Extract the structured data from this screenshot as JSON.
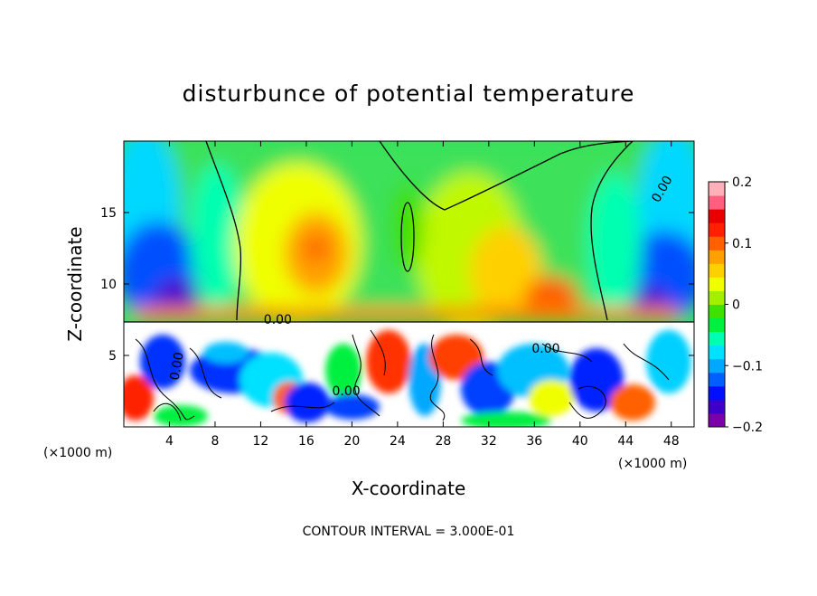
{
  "chart_data": {
    "type": "heatmap",
    "title": "disturbunce of potential temperature",
    "xlabel": "X-coordinate",
    "ylabel": "Z-coordinate",
    "x_unit_left": "(×1000 m)",
    "x_unit_right": "(×1000 m)",
    "xlim": [
      0,
      50
    ],
    "ylim": [
      0,
      20
    ],
    "x_ticks": [
      4,
      8,
      12,
      16,
      20,
      24,
      28,
      32,
      36,
      40,
      44,
      48
    ],
    "x_tick_labels": [
      "4",
      "8",
      "12",
      "16",
      "20",
      "24",
      "28",
      "32",
      "36",
      "40",
      "44",
      "48"
    ],
    "y_ticks": [
      5,
      10,
      15
    ],
    "y_tick_labels": [
      "5",
      "10",
      "15"
    ],
    "contour_labels": [
      {
        "text": "0.00",
        "x": 47.5,
        "y": 16.5,
        "rotate": -60
      },
      {
        "text": "0.00",
        "x": 13.5,
        "y": 7.2,
        "rotate": 0
      },
      {
        "text": "0.00",
        "x": 37.0,
        "y": 5.2,
        "rotate": 0
      },
      {
        "text": "0.00",
        "x": 19.5,
        "y": 2.2,
        "rotate": 0
      },
      {
        "text": "0.00",
        "x": 5.0,
        "y": 4.2,
        "rotate": -80
      }
    ],
    "colorbar": {
      "min": -0.2,
      "max": 0.2,
      "tick_values": [
        0.2,
        0.1,
        0,
        -0.1,
        -0.2
      ],
      "tick_labels": [
        "0.2",
        "0.1",
        "0",
        "−0.1",
        "−0.2"
      ],
      "colors": [
        "#7a00a8",
        "#3c00c8",
        "#0010ff",
        "#0060ff",
        "#00a8ff",
        "#00e0ff",
        "#00ffb0",
        "#00f040",
        "#40e000",
        "#a0f000",
        "#f0ff00",
        "#ffd000",
        "#ffa000",
        "#ff6000",
        "#ff2000",
        "#e80000",
        "#ff6080",
        "#ffb0b8"
      ]
    },
    "footer": "CONTOUR INTERVAL = 3.000E-01"
  }
}
